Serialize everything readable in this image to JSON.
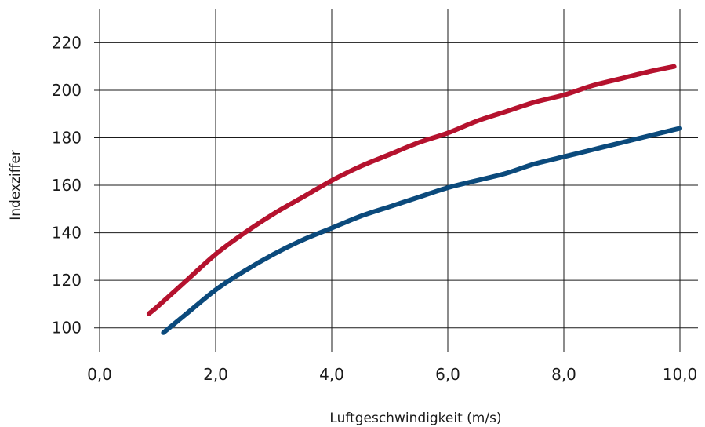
{
  "chart_data": {
    "type": "line",
    "title": "",
    "xlabel": "Luftgeschwindigkeit (m/s)",
    "ylabel": "Indexziffer",
    "xlim": [
      0,
      10
    ],
    "ylim": [
      90,
      234
    ],
    "x_ticks": [
      "0,0",
      "2,0",
      "4,0",
      "6,0",
      "8,0",
      "10,0"
    ],
    "y_ticks": [
      "100",
      "120",
      "140",
      "160",
      "180",
      "200",
      "220"
    ],
    "x_tick_values": [
      0,
      2,
      4,
      6,
      8,
      10
    ],
    "y_tick_values": [
      100,
      120,
      140,
      160,
      180,
      200,
      220
    ],
    "grid": true,
    "series": [
      {
        "color": "#b5122e",
        "x": [
          0.85,
          1.0,
          1.5,
          2.0,
          2.5,
          3.0,
          3.5,
          4.0,
          4.5,
          5.0,
          5.5,
          6.0,
          6.5,
          7.0,
          7.5,
          8.0,
          8.5,
          9.0,
          9.5,
          9.9
        ],
        "y": [
          106,
          109,
          120,
          131,
          140,
          148,
          155,
          162,
          168,
          173,
          178,
          182,
          187,
          191,
          195,
          198,
          202,
          205,
          208,
          210
        ]
      },
      {
        "color": "#0b4a7c",
        "x": [
          1.1,
          1.5,
          2.0,
          2.5,
          3.0,
          3.5,
          4.0,
          4.5,
          5.0,
          5.5,
          6.0,
          6.5,
          7.0,
          7.5,
          8.0,
          8.5,
          9.0,
          9.5,
          10.0
        ],
        "y": [
          98,
          106,
          116,
          124,
          131,
          137,
          142,
          147,
          151,
          155,
          159,
          162,
          165,
          169,
          172,
          175,
          178,
          181,
          184
        ]
      }
    ]
  }
}
